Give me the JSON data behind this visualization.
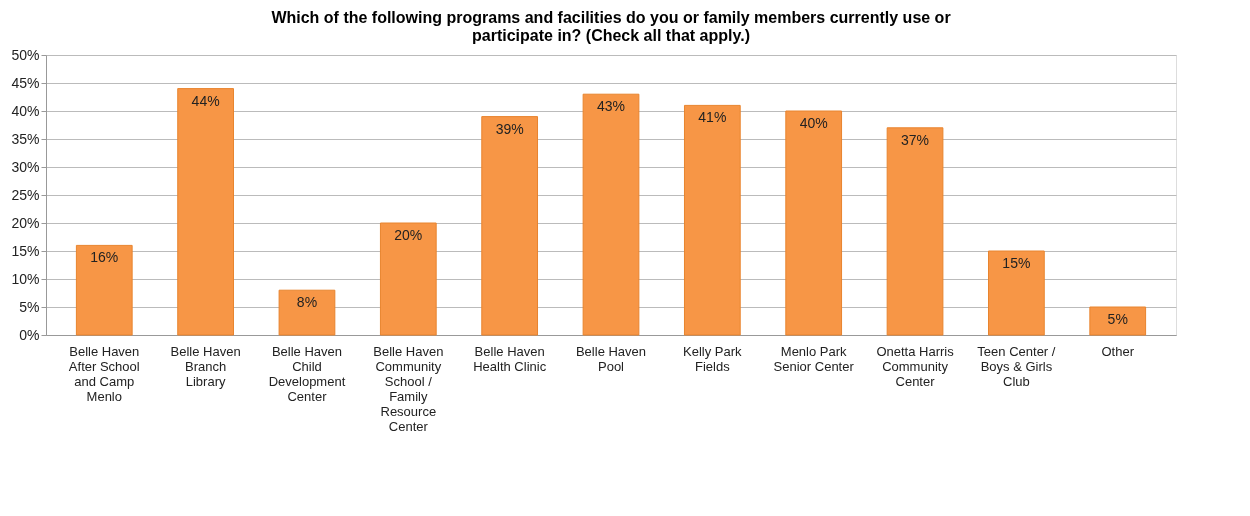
{
  "chart_data": {
    "type": "bar",
    "title": "Which of the following programs and facilities do you or family members currently use or participate in? (Check all that apply.)",
    "categories": [
      "Belle Haven After School and Camp Menlo",
      "Belle Haven Branch Library",
      "Belle Haven Child Development Center",
      "Belle Haven Community School / Family Resource Center",
      "Belle Haven Health Clinic",
      "Belle Haven Pool",
      "Kelly Park Fields",
      "Menlo Park Senior Center",
      "Onetta Harris Community Center",
      "Teen Center / Boys & Girls Club",
      "Other"
    ],
    "values": [
      16,
      44,
      8,
      20,
      39,
      43,
      41,
      40,
      37,
      15,
      5
    ],
    "value_labels": [
      "16%",
      "44%",
      "8%",
      "20%",
      "39%",
      "43%",
      "41%",
      "40%",
      "37%",
      "15%",
      "5%"
    ],
    "color": "#f79646",
    "ylim": [
      0,
      50
    ],
    "yticks": [
      {
        "value": 0,
        "label": "0%"
      },
      {
        "value": 5,
        "label": "5%"
      },
      {
        "value": 10,
        "label": "10%"
      },
      {
        "value": 15,
        "label": "15%"
      },
      {
        "value": 20,
        "label": "20%"
      },
      {
        "value": 25,
        "label": "25%"
      },
      {
        "value": 30,
        "label": "30%"
      },
      {
        "value": 35,
        "label": "35%"
      },
      {
        "value": 40,
        "label": "40%"
      },
      {
        "value": 45,
        "label": "45%"
      },
      {
        "value": 50,
        "label": "50%"
      }
    ],
    "grid": "y"
  }
}
